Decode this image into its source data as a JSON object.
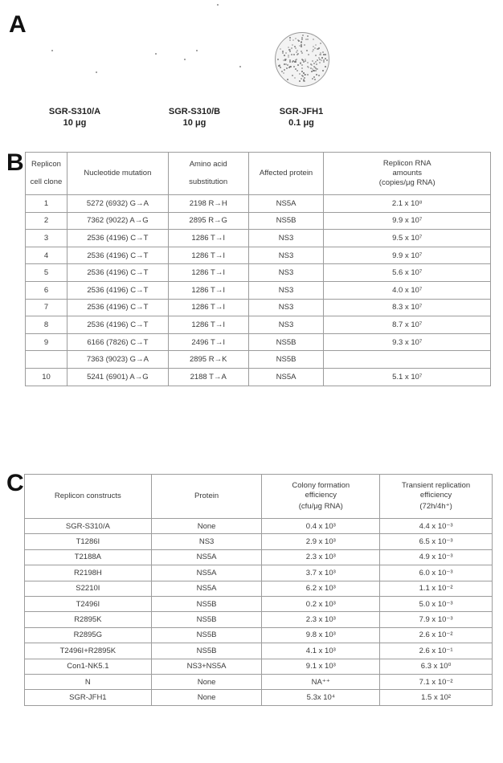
{
  "panels": {
    "a": "A",
    "b": "B",
    "c": "C"
  },
  "panel_a": {
    "dishes": [
      {
        "name": "SGR-S310/A",
        "amount": "10 μg"
      },
      {
        "name": "SGR-S310/B",
        "amount": "10 μg"
      },
      {
        "name": "SGR-JFH1",
        "amount": "0.1 μg"
      }
    ]
  },
  "table_b": {
    "headers": {
      "clone_1": "Replicon",
      "clone_2": "cell clone",
      "nucleotide": "Nucleotide mutation",
      "amino_1": "Amino acid",
      "amino_2": "substitution",
      "protein": "Affected protein",
      "rna_1": "Replicon RNA",
      "rna_2": "amounts",
      "rna_3": "(copies/μg RNA)"
    },
    "rows": [
      {
        "clone": "1",
        "nuc": "5272 (6932) G→A",
        "aa": "2198 R→H",
        "protein": "NS5A",
        "rna": "2.1 x 10⁸"
      },
      {
        "clone": "2",
        "nuc": "7362 (9022) A→G",
        "aa": "2895 R→G",
        "protein": "NS5B",
        "rna": "9.9 x 10⁷"
      },
      {
        "clone": "3",
        "nuc": "2536 (4196) C→T",
        "aa": "1286 T→I",
        "protein": "NS3",
        "rna": "9.5 x 10⁷"
      },
      {
        "clone": "4",
        "nuc": "2536 (4196) C→T",
        "aa": "1286 T→I",
        "protein": "NS3",
        "rna": "9.9 x 10⁷"
      },
      {
        "clone": "5",
        "nuc": "2536 (4196) C→T",
        "aa": "1286 T→I",
        "protein": "NS3",
        "rna": "5.6 x 10⁷"
      },
      {
        "clone": "6",
        "nuc": "2536 (4196) C→T",
        "aa": "1286 T→I",
        "protein": "NS3",
        "rna": "4.0 x 10⁷"
      },
      {
        "clone": "7",
        "nuc": "2536 (4196) C→T",
        "aa": "1286 T→I",
        "protein": "NS3",
        "rna": "8.3 x 10⁷"
      },
      {
        "clone": "8",
        "nuc": "2536 (4196) C→T",
        "aa": "1286 T→I",
        "protein": "NS3",
        "rna": "8.7 x 10⁷"
      },
      {
        "clone": "9",
        "nuc": "6166 (7826) C→T",
        "aa": "2496 T→I",
        "protein": "NS5B",
        "rna": "9.3 x 10⁷"
      },
      {
        "clone": "",
        "nuc": "7363 (9023) G→A",
        "aa": "2895 R→K",
        "protein": "NS5B",
        "rna": ""
      },
      {
        "clone": "10",
        "nuc": "5241 (6901) A→G",
        "aa": "2188 T→A",
        "protein": "NS5A",
        "rna": "5.1 x 10⁷"
      }
    ]
  },
  "table_c": {
    "headers": {
      "construct": "Replicon constructs",
      "protein": "Protein",
      "colony_1": "Colony formation",
      "colony_2": "efficiency",
      "colony_3": "(cfu/μg RNA)",
      "transient_1": "Transient replication",
      "transient_2": "efficiency",
      "transient_3": "(72h/4h⁺)"
    },
    "rows": [
      {
        "construct": "SGR-S310/A",
        "protein": "None",
        "colony": "0.4 x 10³",
        "transient": "4.4 x 10⁻³"
      },
      {
        "construct": "T1286I",
        "protein": "NS3",
        "colony": "2.9 x 10³",
        "transient": "6.5 x 10⁻³"
      },
      {
        "construct": "T2188A",
        "protein": "NS5A",
        "colony": "2.3 x 10³",
        "transient": "4.9 x 10⁻³"
      },
      {
        "construct": "R2198H",
        "protein": "NS5A",
        "colony": "3.7 x 10³",
        "transient": "6.0 x 10⁻³"
      },
      {
        "construct": "S2210I",
        "protein": "NS5A",
        "colony": "6.2 x 10³",
        "transient": "1.1 x 10⁻²"
      },
      {
        "construct": "T2496I",
        "protein": "NS5B",
        "colony": "0.2 x 10³",
        "transient": "5.0 x 10⁻³"
      },
      {
        "construct": "R2895K",
        "protein": "NS5B",
        "colony": "2.3 x 10³",
        "transient": "7.9 x 10⁻³"
      },
      {
        "construct": "R2895G",
        "protein": "NS5B",
        "colony": "9.8 x 10³",
        "transient": "2.6 x 10⁻²"
      },
      {
        "construct": "T2496I+R2895K",
        "protein": "NS5B",
        "colony": "4.1 x 10³",
        "transient": "2.6 x 10⁻¹"
      },
      {
        "construct": "Con1-NK5.1",
        "protein": "NS3+NS5A",
        "colony": "9.1 x 10³",
        "transient": "6.3 x 10⁰"
      },
      {
        "construct": "N",
        "protein": "None",
        "colony": "NA⁺⁺",
        "transient": "7.1 x 10⁻²"
      },
      {
        "construct": "SGR-JFH1",
        "protein": "None",
        "colony": "5.3x 10⁴",
        "transient": "1.5 x 10²"
      }
    ]
  }
}
